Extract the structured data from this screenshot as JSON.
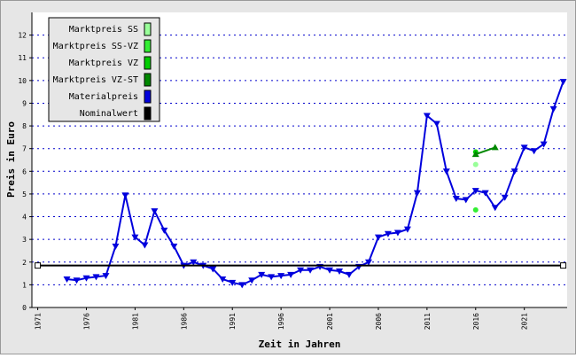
{
  "chart_data": {
    "type": "line",
    "xlabel": "Zeit in Jahren",
    "ylabel": "Preis in Euro",
    "xlim": [
      1970.4,
      2025.4
    ],
    "xticks": [
      1971,
      1976,
      1981,
      1986,
      1991,
      1996,
      2001,
      2006,
      2011,
      2016,
      2021
    ],
    "ylim": [
      0,
      13
    ],
    "yticks": [
      0,
      1,
      2,
      3,
      4,
      5,
      6,
      7,
      8,
      9,
      10,
      11,
      12
    ],
    "grid": true,
    "series": [
      {
        "name": "Marktpreis SS",
        "color": "#99ff99",
        "marker": "circle",
        "x": [
          2016
        ],
        "values": [
          6.3
        ]
      },
      {
        "name": "Marktpreis SS-VZ",
        "color": "#33ee33",
        "marker": "circle",
        "x": [
          2016
        ],
        "values": [
          4.3
        ]
      },
      {
        "name": "Marktpreis VZ",
        "color": "#00cc00",
        "marker": "circle",
        "x": [
          2016
        ],
        "values": [
          6.85
        ]
      },
      {
        "name": "Marktpreis VZ-ST",
        "color": "#008800",
        "marker": "triangle-up",
        "x": [
          2016,
          2018
        ],
        "values": [
          6.75,
          7.05
        ]
      },
      {
        "name": "Materialpreis",
        "color": "#0000dd",
        "marker": "triangle-down",
        "x": [
          1974,
          1975,
          1976,
          1977,
          1978,
          1979,
          1980,
          1981,
          1982,
          1983,
          1984,
          1985,
          1986,
          1987,
          1988,
          1989,
          1990,
          1991,
          1992,
          1993,
          1994,
          1995,
          1996,
          1997,
          1998,
          1999,
          2000,
          2001,
          2002,
          2003,
          2004,
          2005,
          2006,
          2007,
          2008,
          2009,
          2010,
          2011,
          2012,
          2013,
          2014,
          2015,
          2016,
          2017,
          2018,
          2019,
          2020,
          2021,
          2022,
          2023,
          2024,
          2025
        ],
        "values": [
          1.25,
          1.2,
          1.3,
          1.35,
          1.4,
          2.7,
          4.95,
          3.1,
          2.75,
          4.25,
          3.4,
          2.7,
          1.85,
          2.0,
          1.85,
          1.7,
          1.25,
          1.1,
          1.0,
          1.2,
          1.45,
          1.35,
          1.4,
          1.45,
          1.65,
          1.65,
          1.8,
          1.65,
          1.6,
          1.45,
          1.8,
          2.0,
          3.1,
          3.25,
          3.3,
          3.45,
          5.05,
          8.45,
          8.1,
          6.0,
          4.8,
          4.75,
          5.15,
          5.05,
          4.4,
          4.85,
          6.0,
          7.05,
          6.9,
          7.2,
          8.75,
          9.95
        ]
      },
      {
        "name": "Nominalwert",
        "color": "#000000",
        "marker": "square",
        "x": [
          1971,
          2025
        ],
        "values": [
          1.85,
          1.85
        ]
      }
    ]
  }
}
